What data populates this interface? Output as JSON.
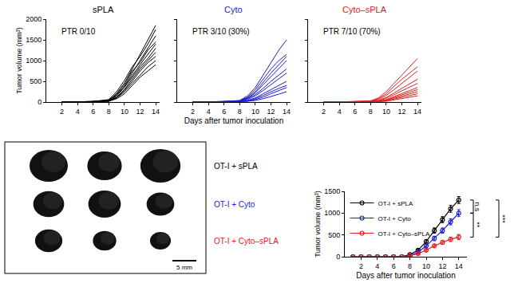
{
  "chart_data": [
    {
      "type": "line",
      "title": "sPLA",
      "color": "#000000",
      "annotation": "PTR 0/10",
      "y_label": "Tumor volume (mm³)",
      "grid": false,
      "x": [
        2,
        4,
        6,
        8,
        9,
        10,
        11,
        12,
        13,
        14
      ],
      "series": [
        {
          "values": [
            0,
            5,
            10,
            40,
            200,
            450,
            800,
            1150,
            1500,
            1850
          ]
        },
        {
          "values": [
            0,
            5,
            15,
            60,
            250,
            520,
            850,
            1100,
            1400,
            1750
          ]
        },
        {
          "values": [
            0,
            5,
            10,
            30,
            150,
            400,
            700,
            1000,
            1300,
            1600
          ]
        },
        {
          "values": [
            0,
            5,
            10,
            50,
            200,
            450,
            750,
            950,
            1250,
            1450
          ]
        },
        {
          "values": [
            0,
            5,
            10,
            40,
            180,
            380,
            650,
            900,
            1150,
            1400
          ]
        },
        {
          "values": [
            0,
            5,
            10,
            30,
            150,
            350,
            600,
            850,
            1050,
            1300
          ]
        },
        {
          "values": [
            0,
            5,
            10,
            30,
            120,
            300,
            550,
            800,
            1000,
            1200
          ]
        },
        {
          "values": [
            0,
            5,
            10,
            20,
            100,
            280,
            500,
            750,
            950,
            1100
          ]
        },
        {
          "values": [
            0,
            5,
            10,
            20,
            100,
            250,
            450,
            650,
            850,
            1000
          ]
        },
        {
          "values": [
            0,
            5,
            10,
            20,
            80,
            200,
            400,
            600,
            750,
            900
          ]
        }
      ],
      "xlim": [
        0,
        14.5
      ],
      "xticks": [
        2,
        4,
        6,
        8,
        10,
        12,
        14
      ],
      "ylim": [
        0,
        2000
      ],
      "yticks": [
        0,
        500,
        1000,
        1500,
        2000
      ]
    },
    {
      "type": "line",
      "title": "Cyto",
      "color": "#1c1cd6",
      "annotation": "PTR 3/10 (30%)",
      "x_label": "Days after tumor inoculation",
      "grid": false,
      "tick_labels": "x",
      "x": [
        2,
        4,
        6,
        8,
        9,
        10,
        11,
        12,
        13,
        14
      ],
      "series": [
        {
          "values": [
            0,
            5,
            10,
            40,
            150,
            350,
            650,
            950,
            1250,
            1500
          ]
        },
        {
          "values": [
            0,
            5,
            10,
            30,
            120,
            300,
            550,
            800,
            1000,
            1150
          ]
        },
        {
          "values": [
            0,
            5,
            10,
            30,
            100,
            250,
            480,
            700,
            900,
            1100
          ]
        },
        {
          "values": [
            0,
            5,
            10,
            20,
            90,
            220,
            420,
            620,
            820,
            1000
          ]
        },
        {
          "values": [
            0,
            5,
            10,
            20,
            80,
            180,
            330,
            500,
            650,
            800
          ]
        },
        {
          "values": [
            0,
            5,
            10,
            20,
            60,
            150,
            280,
            420,
            560,
            700
          ]
        },
        {
          "values": [
            0,
            5,
            5,
            10,
            40,
            100,
            200,
            300,
            400,
            500
          ]
        },
        {
          "values": [
            0,
            5,
            5,
            10,
            30,
            80,
            160,
            250,
            330,
            400
          ]
        },
        {
          "values": [
            0,
            5,
            5,
            10,
            20,
            60,
            120,
            200,
            280,
            350
          ]
        },
        {
          "values": [
            0,
            0,
            5,
            10,
            20,
            40,
            80,
            130,
            190,
            250
          ]
        }
      ],
      "xlim": [
        0,
        14.5
      ],
      "xticks": [
        2,
        4,
        6,
        8,
        10,
        12,
        14
      ],
      "ylim": [
        0,
        2000
      ],
      "yticks": [
        0,
        500,
        1000,
        1500,
        2000
      ]
    },
    {
      "type": "line",
      "title": "Cyto–sPLA",
      "color": "#e02020",
      "annotation": "PTR 7/10 (70%)",
      "grid": false,
      "tick_labels": "x",
      "x": [
        2,
        4,
        6,
        8,
        9,
        10,
        11,
        12,
        13,
        14
      ],
      "series": [
        {
          "values": [
            0,
            5,
            10,
            30,
            100,
            250,
            450,
            650,
            850,
            1050
          ]
        },
        {
          "values": [
            0,
            5,
            10,
            20,
            80,
            200,
            380,
            550,
            700,
            850
          ]
        },
        {
          "values": [
            0,
            5,
            10,
            20,
            60,
            160,
            300,
            450,
            600,
            750
          ]
        },
        {
          "values": [
            0,
            5,
            5,
            10,
            40,
            110,
            220,
            330,
            450,
            550
          ]
        },
        {
          "values": [
            0,
            5,
            5,
            10,
            30,
            90,
            180,
            270,
            360,
            450
          ]
        },
        {
          "values": [
            0,
            5,
            5,
            10,
            20,
            60,
            130,
            200,
            280,
            350
          ]
        },
        {
          "values": [
            0,
            0,
            5,
            10,
            20,
            50,
            110,
            170,
            240,
            300
          ]
        },
        {
          "values": [
            0,
            0,
            5,
            10,
            15,
            40,
            90,
            140,
            200,
            250
          ]
        },
        {
          "values": [
            0,
            0,
            5,
            5,
            10,
            30,
            70,
            110,
            150,
            200
          ]
        },
        {
          "values": [
            0,
            0,
            5,
            5,
            10,
            20,
            50,
            80,
            110,
            150
          ]
        }
      ],
      "xlim": [
        0,
        14.5
      ],
      "xticks": [
        2,
        4,
        6,
        8,
        10,
        12,
        14
      ],
      "ylim": [
        0,
        2000
      ],
      "yticks": [
        0,
        500,
        1000,
        1500,
        2000
      ]
    },
    {
      "type": "line",
      "marker": "circle-open",
      "legend": "upper left",
      "grid": false,
      "x_label": "Days after tumor inoculation",
      "y_label": "Tumor volume (mm³)",
      "x": [
        1,
        2,
        3,
        4,
        5,
        6,
        7,
        8,
        9,
        10,
        11,
        12,
        13,
        14
      ],
      "series": [
        {
          "name": "OT-I + sPLA",
          "color": "#000000",
          "values": [
            0,
            0,
            0,
            0,
            0,
            0,
            0,
            50,
            150,
            350,
            600,
            850,
            1100,
            1300
          ],
          "errors": [
            0,
            0,
            0,
            0,
            0,
            0,
            0,
            10,
            20,
            40,
            60,
            70,
            80,
            80
          ]
        },
        {
          "name": "OT-I + Cyto",
          "color": "#1c1cd6",
          "values": [
            0,
            0,
            0,
            0,
            0,
            0,
            0,
            30,
            100,
            250,
            420,
            600,
            800,
            1000
          ],
          "errors": [
            0,
            0,
            0,
            0,
            0,
            0,
            0,
            10,
            20,
            30,
            50,
            60,
            70,
            80
          ]
        },
        {
          "name": "OT-I + Cyto–sPLA",
          "color": "#e02020",
          "values": [
            0,
            0,
            0,
            0,
            0,
            0,
            0,
            20,
            70,
            150,
            250,
            330,
            400,
            450
          ],
          "errors": [
            0,
            0,
            0,
            0,
            0,
            0,
            0,
            5,
            15,
            25,
            35,
            45,
            50,
            60
          ]
        }
      ],
      "comparisons": [
        {
          "between": [
            "OT-I + sPLA",
            "OT-I + Cyto"
          ],
          "label": "n.s"
        },
        {
          "between": [
            "OT-I + Cyto",
            "OT-I + Cyto–sPLA"
          ],
          "label": "**"
        },
        {
          "between": [
            "OT-I + sPLA",
            "OT-I + Cyto–sPLA"
          ],
          "label": "***"
        }
      ],
      "xlim": [
        0,
        15
      ],
      "xticks": [
        2,
        4,
        6,
        8,
        10,
        12,
        14
      ],
      "ylim": [
        0,
        1500
      ],
      "yticks": [
        0,
        500,
        1000,
        1500
      ]
    }
  ],
  "image_panel": {
    "labels": [
      {
        "text": "OT-I + sPLA",
        "color": "#000000"
      },
      {
        "text": "OT-I + Cyto",
        "color": "#1c1cd6"
      },
      {
        "text": "OT-I + Cyto–sPLA",
        "color": "#e02020"
      }
    ],
    "scale_bar": "5 mm"
  }
}
